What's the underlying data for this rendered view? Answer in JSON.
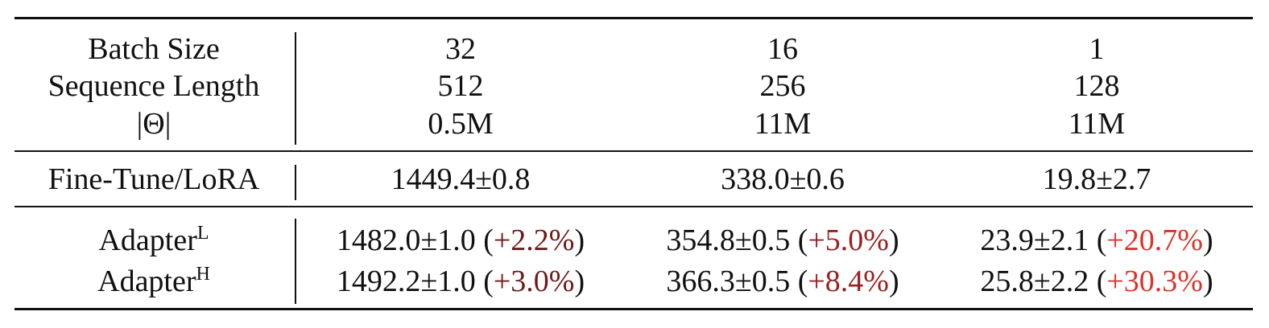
{
  "table": {
    "header": {
      "labels": [
        "Batch Size",
        "Sequence Length",
        "|Θ|"
      ],
      "columns": [
        [
          "32",
          "512",
          "0.5M"
        ],
        [
          "16",
          "256",
          "11M"
        ],
        [
          "1",
          "128",
          "11M"
        ]
      ]
    },
    "finetune": {
      "label": "Fine-Tune/LoRA",
      "values": [
        "1449.4±0.8",
        "338.0±0.6",
        "19.8±2.7"
      ]
    },
    "adapters": [
      {
        "label": "Adapter",
        "sup": "L",
        "cells": [
          {
            "value": "1482.0±1.0",
            "pct": "+2.2%",
            "pct_color": "#6e1a1a"
          },
          {
            "value": "354.8±0.5",
            "pct": "+5.0%",
            "pct_color": "#9a2020"
          },
          {
            "value": "23.9±2.1",
            "pct": "+20.7%",
            "pct_color": "#d8352a"
          }
        ]
      },
      {
        "label": "Adapter",
        "sup": "H",
        "cells": [
          {
            "value": "1492.2±1.0",
            "pct": "+3.0%",
            "pct_color": "#6e1a1a"
          },
          {
            "value": "366.3±0.5",
            "pct": "+8.4%",
            "pct_color": "#9a2020"
          },
          {
            "value": "25.8±2.2",
            "pct": "+30.3%",
            "pct_color": "#d8352a"
          }
        ]
      }
    ]
  }
}
